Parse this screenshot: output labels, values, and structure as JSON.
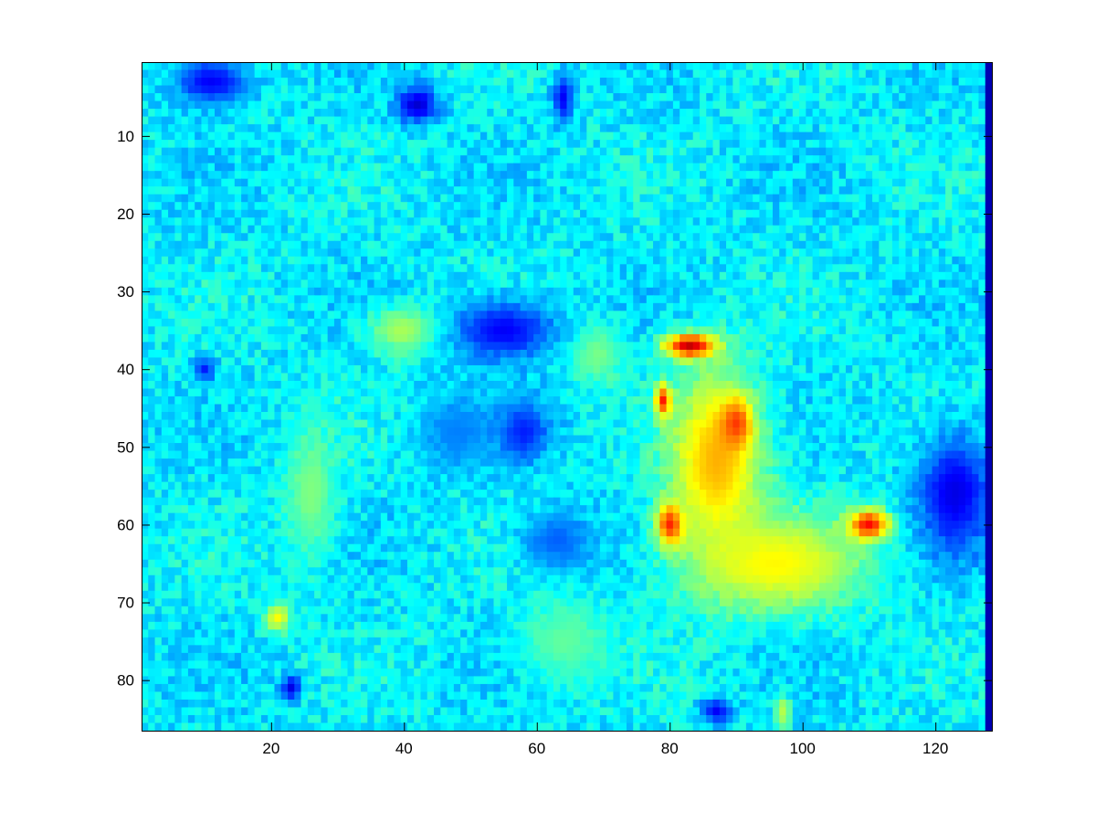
{
  "chart_data": {
    "type": "heatmap",
    "title": "",
    "xlabel": "",
    "ylabel": "",
    "colormap": "jet",
    "grid": false,
    "legend": "none",
    "xlim": [
      0.5,
      128.5
    ],
    "ylim": [
      0.5,
      86.5
    ],
    "y_direction": "reversed",
    "x_ticks": [
      20,
      40,
      60,
      80,
      100,
      120
    ],
    "y_ticks": [
      10,
      20,
      30,
      40,
      50,
      60,
      70,
      80
    ],
    "x_tick_labels": [
      "20",
      "40",
      "60",
      "80",
      "100",
      "120"
    ],
    "y_tick_labels": [
      "10",
      "20",
      "30",
      "40",
      "50",
      "60",
      "70",
      "80"
    ],
    "columns": 128,
    "rows": 86,
    "value_range": [
      0,
      1
    ],
    "background_level": 0.36,
    "approximate_regions": [
      {
        "shape": "ellipse",
        "cx": 87,
        "cy": 52,
        "rx": 9,
        "ry": 15,
        "level": 0.7
      },
      {
        "shape": "ellipse",
        "cx": 96,
        "cy": 65,
        "rx": 17,
        "ry": 8,
        "level": 0.63
      },
      {
        "shape": "ellipse",
        "cx": 83,
        "cy": 37,
        "rx": 5,
        "ry": 2,
        "level": 0.93
      },
      {
        "shape": "ellipse",
        "cx": 90,
        "cy": 47,
        "rx": 3,
        "ry": 4,
        "level": 0.82
      },
      {
        "shape": "ellipse",
        "cx": 80,
        "cy": 60,
        "rx": 2.5,
        "ry": 3.5,
        "level": 0.84
      },
      {
        "shape": "ellipse",
        "cx": 110,
        "cy": 60,
        "rx": 4,
        "ry": 2.5,
        "level": 0.87
      },
      {
        "shape": "ellipse",
        "cx": 79,
        "cy": 44,
        "rx": 1.5,
        "ry": 2.5,
        "level": 0.85
      },
      {
        "shape": "ellipse",
        "cx": 40,
        "cy": 35,
        "rx": 7,
        "ry": 4,
        "level": 0.55
      },
      {
        "shape": "ellipse",
        "cx": 26,
        "cy": 56,
        "rx": 5,
        "ry": 11,
        "level": 0.5
      },
      {
        "shape": "ellipse",
        "cx": 69,
        "cy": 38,
        "rx": 5,
        "ry": 5,
        "level": 0.5
      },
      {
        "shape": "ellipse",
        "cx": 21,
        "cy": 72,
        "rx": 2.5,
        "ry": 2.5,
        "level": 0.62
      },
      {
        "shape": "ellipse",
        "cx": 64,
        "cy": 75,
        "rx": 9,
        "ry": 7,
        "level": 0.47
      },
      {
        "shape": "ellipse",
        "cx": 55,
        "cy": 35,
        "rx": 10,
        "ry": 5,
        "level": 0.12
      },
      {
        "shape": "ellipse",
        "cx": 58,
        "cy": 48,
        "rx": 5,
        "ry": 5,
        "level": 0.15
      },
      {
        "shape": "ellipse",
        "cx": 42,
        "cy": 6,
        "rx": 4,
        "ry": 3,
        "level": 0.08
      },
      {
        "shape": "ellipse",
        "cx": 11,
        "cy": 3,
        "rx": 7,
        "ry": 4,
        "level": 0.12
      },
      {
        "shape": "ellipse",
        "cx": 123,
        "cy": 56,
        "rx": 7,
        "ry": 10,
        "level": 0.1
      },
      {
        "shape": "ellipse",
        "cx": 63,
        "cy": 62,
        "rx": 7,
        "ry": 5,
        "level": 0.22
      },
      {
        "shape": "ellipse",
        "cx": 23,
        "cy": 81,
        "rx": 2,
        "ry": 2,
        "level": 0.1
      },
      {
        "shape": "ellipse",
        "cx": 10,
        "cy": 40,
        "rx": 2,
        "ry": 2,
        "level": 0.15
      },
      {
        "shape": "ellipse",
        "cx": 97,
        "cy": 84,
        "rx": 1.5,
        "ry": 3,
        "level": 0.55
      },
      {
        "shape": "ellipse",
        "cx": 87,
        "cy": 84,
        "rx": 3,
        "ry": 2,
        "level": 0.12
      },
      {
        "shape": "ellipse",
        "cx": 64,
        "cy": 5,
        "rx": 2,
        "ry": 4,
        "level": 0.12
      },
      {
        "shape": "ellipse",
        "cx": 48,
        "cy": 48,
        "rx": 7,
        "ry": 6,
        "level": 0.25
      }
    ],
    "right_edge_column": {
      "x": 128,
      "level": 0.05
    }
  }
}
